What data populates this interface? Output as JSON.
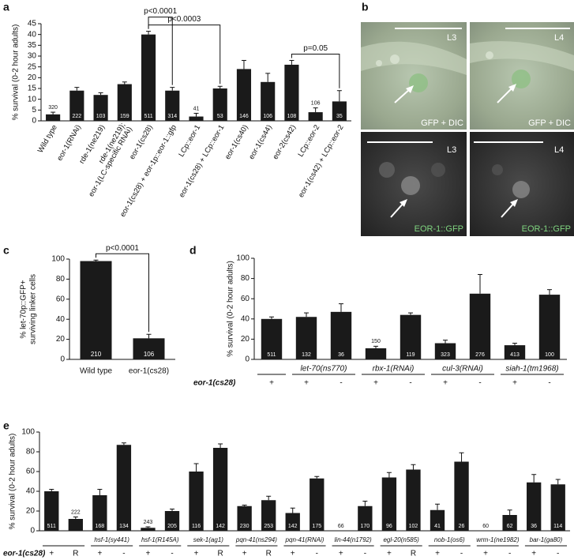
{
  "chart_data": [
    {
      "type": "bar",
      "label": "a",
      "ylabel": "% survival (0-2 hour adults)",
      "categories": [
        "Wild type",
        "eor-1(RNAi)",
        "rde-1(ne219)",
        [
          "rde-1(ne219);",
          "eor-1(LC-specific RNAi)"
        ],
        "eor-1(cs28)",
        "eor-1(cs28) + eor-1p::eor-1::gfp",
        "LCp::eor-1",
        "eor-1(cs28) + LCp::eor-1",
        "eor-1(cs40)",
        "eor-1(cs44)",
        "eor-2(cs42)",
        "LCp::eor-2",
        "eor-1(cs42) + LCp::eor-2"
      ],
      "values": [
        3,
        14,
        12,
        17,
        40,
        14,
        2,
        15,
        24,
        18,
        26,
        4,
        9
      ],
      "errors": [
        1,
        1.5,
        1,
        1,
        1.5,
        1.5,
        1.5,
        1,
        4,
        4,
        2,
        2,
        5
      ],
      "n": [
        320,
        222,
        103,
        159,
        511,
        314,
        41,
        53,
        146,
        106,
        108,
        106,
        35
      ],
      "ylim": [
        0,
        45
      ],
      "yticks": [
        0,
        5,
        10,
        15,
        20,
        25,
        30,
        35,
        40,
        45
      ],
      "color": "#1a1a1a",
      "annotations": [
        {
          "text": "p<0.0001",
          "from": 4,
          "to": 5
        },
        {
          "text": "p<0.0003",
          "from": 4,
          "to": 7
        },
        {
          "text": "p=0.05",
          "from": 10,
          "to": 12
        }
      ]
    },
    {
      "type": "bar",
      "label": "c",
      "ylabel": [
        "% let-70p::GFP+",
        "surviving linker cells"
      ],
      "categories": [
        "Wild type",
        "eor-1(cs28)"
      ],
      "values": [
        98,
        21
      ],
      "errors": [
        1,
        4
      ],
      "n": [
        210,
        106
      ],
      "ylim": [
        0,
        100
      ],
      "yticks": [
        0,
        20,
        40,
        60,
        80,
        100
      ],
      "color": "#1a1a1a",
      "annotations": [
        {
          "text": "p<0.0001",
          "from": 0,
          "to": 1
        }
      ]
    },
    {
      "type": "bar",
      "label": "d",
      "ylabel": "% survival (0-2 hour adults)",
      "row_label": "eor-1(cs28)",
      "categories": [
        "+",
        "+",
        "-",
        "+",
        "-",
        "+",
        "-",
        "+",
        "-"
      ],
      "groups": [
        null,
        "let-70(ns770)",
        "let-70(ns770)",
        "rbx-1(RNAi)",
        "rbx-1(RNAi)",
        "cul-3(RNAi)",
        "cul-3(RNAi)",
        "siah-1(tm1968)",
        "siah-1(tm1968)"
      ],
      "values": [
        40,
        42,
        47,
        11,
        44,
        16,
        65,
        14,
        64
      ],
      "errors": [
        2,
        4,
        8,
        2,
        2,
        3,
        19,
        2,
        5
      ],
      "n": [
        511,
        132,
        36,
        150,
        119,
        323,
        276,
        413,
        100
      ],
      "ylim": [
        0,
        100
      ],
      "yticks": [
        0,
        20,
        40,
        60,
        80,
        100
      ],
      "color": "#1a1a1a"
    },
    {
      "type": "bar",
      "label": "e",
      "ylabel": "% survival (0-2 hour adults)",
      "row_label": "eor-1(cs28)",
      "categories": [
        "+",
        "R",
        "+",
        "-",
        "+",
        "-",
        "+",
        "R",
        "+",
        "R",
        "+",
        "-",
        "+",
        "-",
        "+",
        "R",
        "+",
        "-",
        "+",
        "-",
        "+",
        "-"
      ],
      "groups": [
        null,
        null,
        "hsf-1(sy441)",
        "hsf-1(sy441)",
        "hsf-1(R145A)",
        "hsf-1(R145A)",
        "sek-1(ag1)",
        "sek-1(ag1)",
        "pqn-41(ns294)",
        "pqn-41(ns294)",
        "pqn-41(RNAi)",
        "pqn-41(RNAi)",
        "lin-44(n1792)",
        "lin-44(n1792)",
        "egl-20(n585)",
        "egl-20(n585)",
        "nob-1(os6)",
        "nob-1(os6)",
        "wrm-1(ne1982)",
        "wrm-1(ne1982)",
        "bar-1(ga80)",
        "bar-1(ga80)"
      ],
      "values": [
        40,
        12,
        36,
        87,
        3,
        20,
        60,
        84,
        25,
        31,
        18,
        53,
        0,
        25,
        54,
        62,
        21,
        70,
        0,
        16,
        49,
        47
      ],
      "errors": [
        2,
        2,
        6,
        2,
        1,
        2,
        8,
        4,
        1,
        4,
        5,
        2,
        null,
        5,
        5,
        5,
        6,
        9,
        null,
        5,
        8,
        5
      ],
      "n": [
        511,
        222,
        168,
        134,
        243,
        205,
        116,
        142,
        230,
        253,
        142,
        175,
        66,
        170,
        96,
        102,
        41,
        26,
        60,
        62,
        36,
        114
      ],
      "ylim": [
        0,
        100
      ],
      "yticks": [
        0,
        20,
        40,
        60,
        80,
        100
      ],
      "color": "#1a1a1a"
    }
  ],
  "micrographs": {
    "label": "b",
    "images": [
      {
        "stage": "L3",
        "caption": "GFP + DIC"
      },
      {
        "stage": "L4",
        "caption": "GFP + DIC"
      },
      {
        "stage": "L3",
        "caption": "EOR-1::GFP"
      },
      {
        "stage": "L4",
        "caption": "EOR-1::GFP"
      }
    ]
  }
}
